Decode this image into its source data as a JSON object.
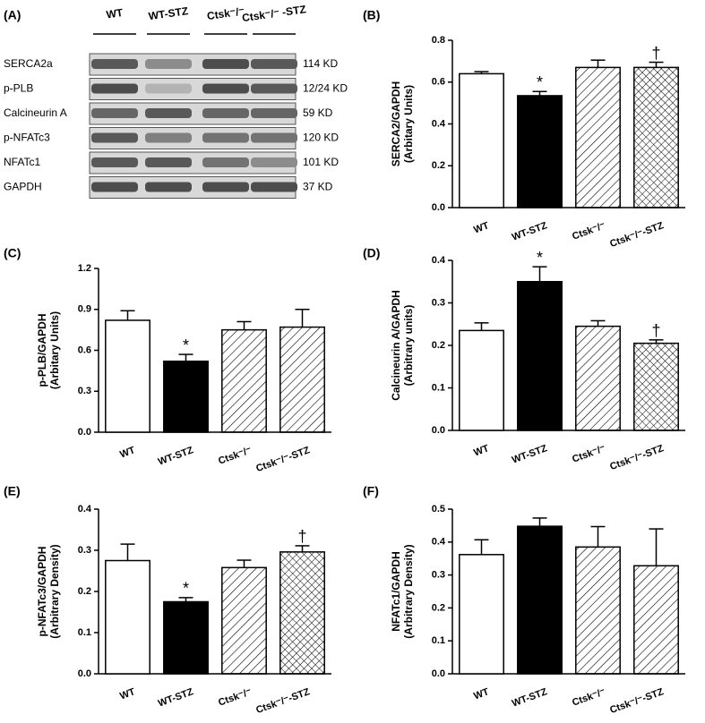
{
  "blot": {
    "panel": "(A)",
    "columns": [
      "WT",
      "WT-STZ",
      "Ctsk⁻/⁻",
      "Ctsk⁻/⁻ -STZ"
    ],
    "bands": [
      {
        "name": "SERCA2a",
        "size": "114 KD"
      },
      {
        "name": "p-PLB",
        "size": "12/24 KD"
      },
      {
        "name": "Calcineurin A",
        "size": "59 KD"
      },
      {
        "name": "p-NFATc3",
        "size": "120 KD"
      },
      {
        "name": "NFATc1",
        "size": "101 KD"
      },
      {
        "name": "GAPDH",
        "size": "37 KD"
      }
    ]
  },
  "chart_data": [
    {
      "type": "bar",
      "panel": "(B)",
      "ylabel": [
        "SERCA2/GAPDH",
        "(Arbitary Units)"
      ],
      "categories": [
        "WT",
        "WT-STZ",
        "Ctsk⁻/⁻",
        "Ctsk⁻/⁻-STZ"
      ],
      "values": [
        0.64,
        0.535,
        0.67,
        0.67
      ],
      "errors": [
        0.01,
        0.02,
        0.035,
        0.025
      ],
      "annotations": [
        null,
        "*",
        null,
        "†"
      ],
      "fills": [
        "open",
        "solid",
        "hatch",
        "crosshatch"
      ],
      "ylim": [
        0,
        0.8
      ],
      "yticks": [
        {
          "value": 0,
          "label": "0.0"
        },
        0.2,
        0.4,
        0.6,
        0.8
      ]
    },
    {
      "type": "bar",
      "panel": "(C)",
      "ylabel": [
        "p-PLB/GAPDH",
        "(Arbitary Units)"
      ],
      "categories": [
        "WT",
        "WT-STZ",
        "Ctsk⁻/⁻",
        "Ctsk⁻/⁻-STZ"
      ],
      "values": [
        0.82,
        0.52,
        0.75,
        0.77
      ],
      "errors": [
        0.07,
        0.05,
        0.06,
        0.13
      ],
      "annotations": [
        null,
        "*",
        null,
        null
      ],
      "fills": [
        "open",
        "solid",
        "hatch",
        "hatch"
      ],
      "ylim": [
        0,
        1.2
      ],
      "yticks": [
        {
          "value": 0,
          "label": "0.0"
        },
        0.3,
        0.6,
        0.9,
        1.2
      ]
    },
    {
      "type": "bar",
      "panel": "(D)",
      "ylabel": [
        "Calcineurin A/GAPDH",
        "(Arbitrary units)"
      ],
      "categories": [
        "WT",
        "WT-STZ",
        "Ctsk⁻/⁻",
        "Ctsk⁻/⁻-STZ"
      ],
      "values": [
        0.235,
        0.35,
        0.245,
        0.205
      ],
      "errors": [
        0.018,
        0.035,
        0.013,
        0.008
      ],
      "annotations": [
        null,
        "*",
        null,
        "†"
      ],
      "fills": [
        "open",
        "solid",
        "hatch",
        "crosshatch"
      ],
      "ylim": [
        0,
        0.4
      ],
      "yticks": [
        {
          "value": 0,
          "label": "0.0"
        },
        0.1,
        0.2,
        0.3,
        0.4
      ]
    },
    {
      "type": "bar",
      "panel": "(E)",
      "ylabel": [
        "p-NFATc3/GAPDH",
        "(Arbitrary Density)"
      ],
      "categories": [
        "WT",
        "WT-STZ",
        "Ctsk⁻/⁻",
        "Ctsk⁻/⁻-STZ"
      ],
      "values": [
        0.275,
        0.175,
        0.258,
        0.296
      ],
      "errors": [
        0.04,
        0.01,
        0.018,
        0.015
      ],
      "annotations": [
        null,
        "*",
        null,
        "†"
      ],
      "fills": [
        "open",
        "solid",
        "hatch",
        "crosshatch"
      ],
      "ylim": [
        0,
        0.4
      ],
      "yticks": [
        {
          "value": 0,
          "label": "0.0"
        },
        0.1,
        0.2,
        0.3,
        0.4
      ]
    },
    {
      "type": "bar",
      "panel": "(F)",
      "ylabel": [
        "NFATc1/GAPDH",
        "(Arbitrary Density)"
      ],
      "categories": [
        "WT",
        "WT-STZ",
        "Ctsk⁻/⁻",
        "Ctsk⁻/⁻-STZ"
      ],
      "values": [
        0.362,
        0.448,
        0.385,
        0.328
      ],
      "errors": [
        0.045,
        0.025,
        0.062,
        0.112
      ],
      "annotations": [
        null,
        null,
        null,
        null
      ],
      "fills": [
        "open",
        "solid",
        "hatch",
        "hatch"
      ],
      "ylim": [
        0,
        0.5
      ],
      "yticks": [
        {
          "value": 0,
          "label": "0.0"
        },
        0.1,
        0.2,
        0.3,
        0.4,
        0.5
      ]
    }
  ]
}
